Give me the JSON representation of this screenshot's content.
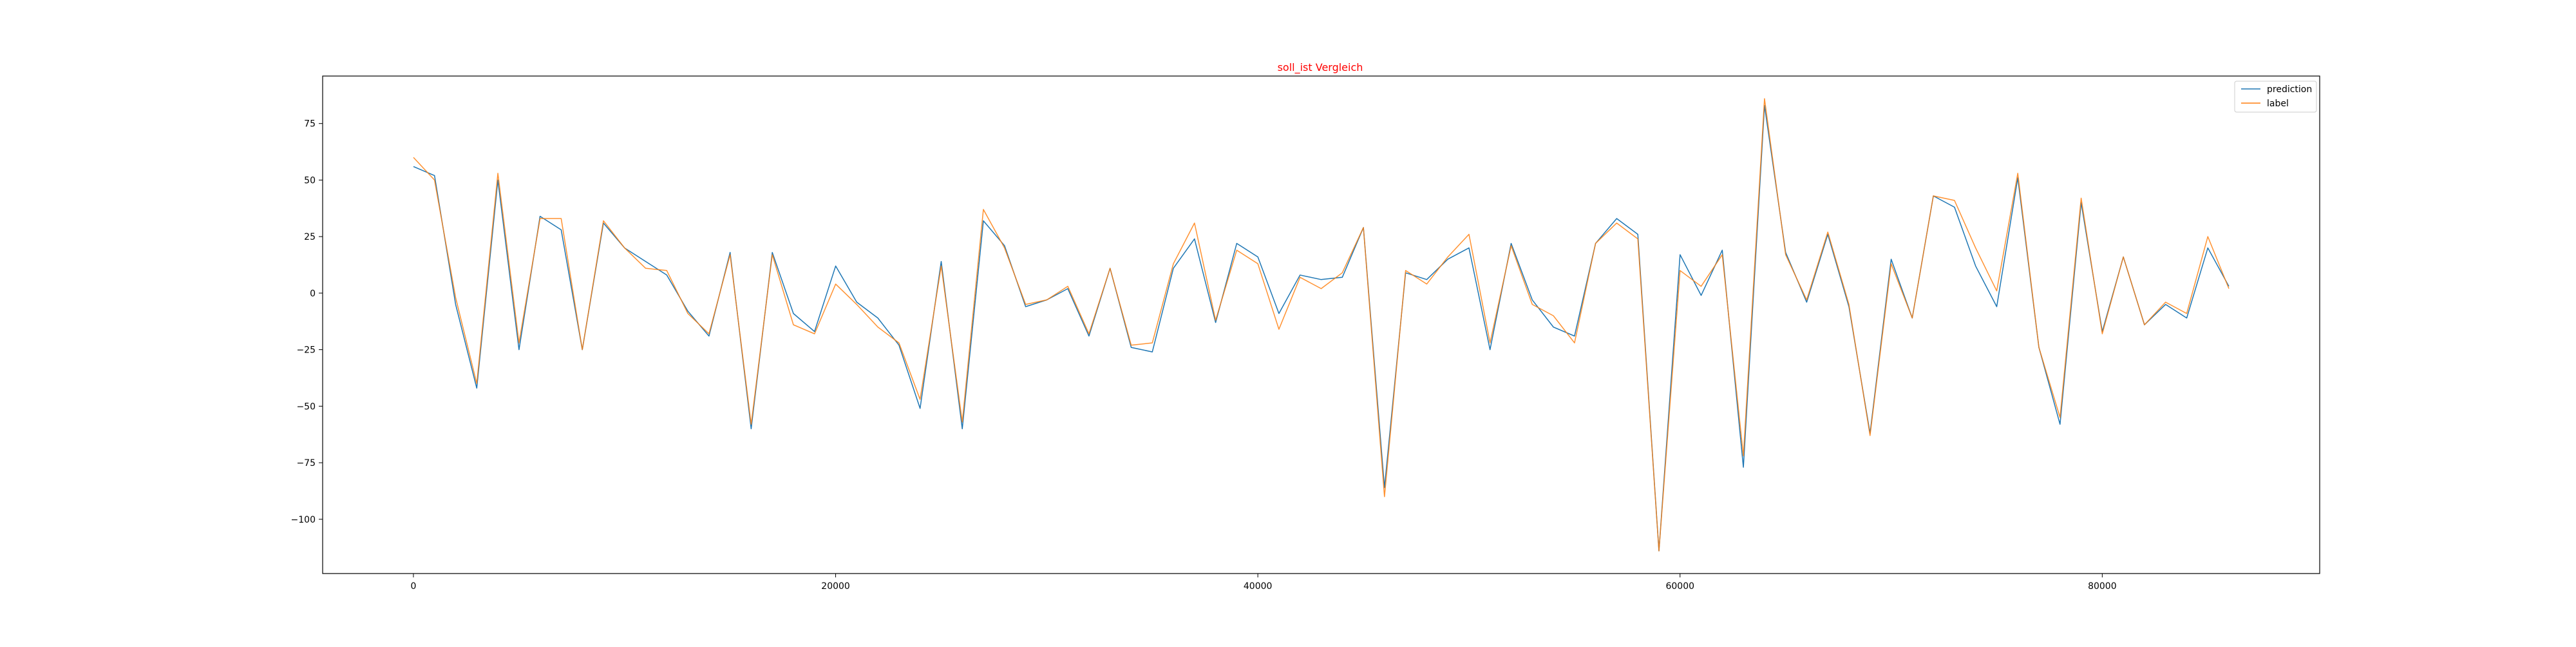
{
  "chart_data": {
    "type": "line",
    "title": "soll_ist Vergleich",
    "title_color": "#ff0000",
    "xlabel": "",
    "ylabel": "",
    "xlim": [
      -4300,
      90300
    ],
    "ylim": [
      -124,
      96
    ],
    "xticks": [
      0,
      20000,
      40000,
      60000,
      80000
    ],
    "xtick_labels": [
      "0",
      "20000",
      "40000",
      "60000",
      "80000"
    ],
    "yticks": [
      -100,
      -75,
      -50,
      -25,
      0,
      25,
      50,
      75
    ],
    "ytick_labels": [
      "−100",
      "−75",
      "−50",
      "−25",
      "0",
      "25",
      "50",
      "75"
    ],
    "grid": false,
    "legend_position": "top-right",
    "x": [
      0,
      1000,
      2000,
      3000,
      4000,
      5000,
      6000,
      7000,
      8000,
      9000,
      10000,
      11000,
      12000,
      13000,
      14000,
      15000,
      16000,
      17000,
      18000,
      19000,
      20000,
      21000,
      22000,
      23000,
      24000,
      25000,
      26000,
      27000,
      28000,
      29000,
      30000,
      31000,
      32000,
      33000,
      34000,
      35000,
      36000,
      37000,
      38000,
      39000,
      40000,
      41000,
      42000,
      43000,
      44000,
      45000,
      46000,
      47000,
      48000,
      49000,
      50000,
      51000,
      52000,
      53000,
      54000,
      55000,
      56000,
      57000,
      58000,
      59000,
      60000,
      61000,
      62000,
      63000,
      64000,
      65000,
      66000,
      67000,
      68000,
      69000,
      70000,
      71000,
      72000,
      73000,
      74000,
      75000,
      76000,
      77000,
      78000,
      79000,
      80000,
      81000,
      82000,
      83000,
      84000,
      85000,
      86000
    ],
    "series": [
      {
        "name": "prediction",
        "color": "#1f77b4",
        "values": [
          56,
          52,
          -5,
          -42,
          50,
          -25,
          34,
          28,
          -25,
          31,
          20,
          14,
          8,
          -8,
          -19,
          18,
          -60,
          18,
          -9,
          -17,
          12,
          -4,
          -11,
          -23,
          -51,
          14,
          -60,
          32,
          21,
          -6,
          -3,
          2,
          -19,
          11,
          -24,
          -26,
          11,
          24,
          -13,
          22,
          16,
          -9,
          8,
          6,
          7,
          29,
          -86,
          9,
          6,
          15,
          20,
          -25,
          22,
          -3,
          -15,
          -19,
          22,
          33,
          26,
          -114,
          17,
          -1,
          19,
          -77,
          83,
          18,
          -4,
          26,
          -6,
          -62,
          15,
          -11,
          43,
          38,
          12,
          -6,
          51,
          -24,
          -58,
          40,
          -17,
          16,
          -14,
          -5,
          -11,
          20,
          3
        ]
      },
      {
        "name": "label",
        "color": "#ff7f0e",
        "values": [
          60,
          50,
          -2,
          -40,
          53,
          -22,
          33,
          33,
          -25,
          32,
          20,
          11,
          10,
          -9,
          -18,
          17,
          -58,
          17,
          -14,
          -18,
          4,
          -5,
          -15,
          -22,
          -47,
          12,
          -57,
          37,
          20,
          -5,
          -3,
          3,
          -18,
          11,
          -23,
          -22,
          13,
          31,
          -12,
          19,
          13,
          -16,
          7,
          2,
          9,
          29,
          -90,
          10,
          4,
          16,
          26,
          -22,
          21,
          -5,
          -10,
          -22,
          22,
          31,
          24,
          -114,
          10,
          3,
          17,
          -72,
          86,
          17,
          -3,
          27,
          -5,
          -63,
          13,
          -11,
          43,
          41,
          20,
          1,
          53,
          -24,
          -55,
          42,
          -18,
          16,
          -14,
          -4,
          -9,
          25,
          2
        ]
      }
    ]
  }
}
